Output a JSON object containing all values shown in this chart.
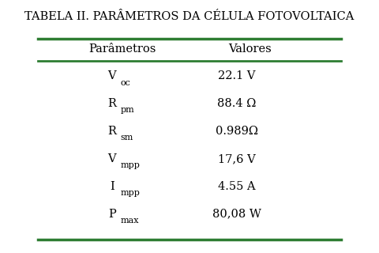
{
  "title_bold": "TABELA II.",
  "title_rest": " PARÂMETROS DA CÉLULA FOTOVOLTAICA",
  "col_headers": [
    "Parâmetros",
    "Valores"
  ],
  "row_labels_main": [
    "V",
    "R",
    "R",
    "V",
    "I",
    "P"
  ],
  "row_labels_sub": [
    "oc",
    "pm",
    "sm",
    "mpp",
    "mpp",
    "max"
  ],
  "values": [
    "22.1 V",
    "88.4 Ω",
    "0.989Ω",
    "17,6 V",
    "4.55 A",
    "80,08 W"
  ],
  "green_color": "#2e7d32",
  "fig_width": 4.8,
  "fig_height": 3.2,
  "background": "#ffffff"
}
